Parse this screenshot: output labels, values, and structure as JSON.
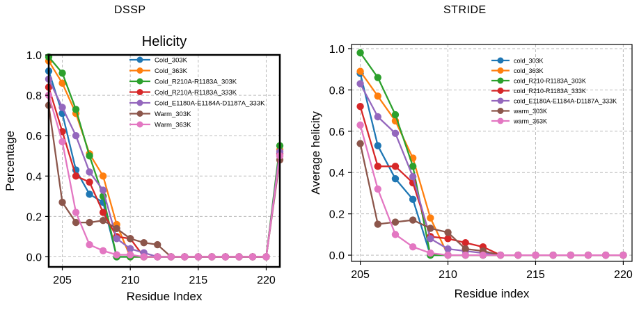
{
  "headings": {
    "left": "DSSP",
    "right": "STRIDE"
  },
  "chart_data": [
    {
      "type": "line",
      "title": "Helicity",
      "xlabel": "Residue Index",
      "ylabel": "Percentage",
      "xlim": [
        204,
        221
      ],
      "ylim": [
        -0.05,
        1.0
      ],
      "xticks": [
        205,
        210,
        215,
        220
      ],
      "yticks": [
        0.0,
        0.2,
        0.4,
        0.6,
        0.8,
        1.0
      ],
      "ytick_labels": [
        "0.0",
        "0.2",
        "0.4",
        "0.6",
        "0.8",
        "1.0"
      ],
      "grid": true,
      "legend_position": "upper-center",
      "x": [
        204,
        205,
        206,
        207,
        208,
        209,
        210,
        211,
        212,
        213,
        214,
        215,
        216,
        217,
        218,
        219,
        220,
        221
      ],
      "series": [
        {
          "name": "Cold_303K",
          "color": "#1f77b4",
          "values": [
            0.92,
            0.71,
            0.43,
            0.31,
            0.27,
            0.0,
            0.0,
            0.0,
            0.0,
            0.0,
            0.0,
            0.0,
            0.0,
            0.0,
            0.0,
            0.0,
            0.0,
            0.5
          ]
        },
        {
          "name": "Cold_363K",
          "color": "#ff7f0e",
          "values": [
            0.97,
            0.86,
            0.71,
            0.51,
            0.4,
            0.16,
            0.0,
            0.0,
            0.0,
            0.0,
            0.0,
            0.0,
            0.0,
            0.0,
            0.0,
            0.0,
            0.0,
            0.53
          ]
        },
        {
          "name": "Cold_R210A-R1183A_303K",
          "color": "#2ca02c",
          "values": [
            0.99,
            0.91,
            0.73,
            0.5,
            0.3,
            0.0,
            0.0,
            0.0,
            0.0,
            0.0,
            0.0,
            0.0,
            0.0,
            0.0,
            0.0,
            0.0,
            0.0,
            0.55
          ]
        },
        {
          "name": "Cold_R210A-R1183A_333K",
          "color": "#d62728",
          "values": [
            0.84,
            0.62,
            0.4,
            0.37,
            0.22,
            0.1,
            0.09,
            0.0,
            0.0,
            0.0,
            0.0,
            0.0,
            0.0,
            0.0,
            0.0,
            0.0,
            0.0,
            0.51
          ]
        },
        {
          "name": "Cold_E1180A-E1184A-D1187A_333K",
          "color": "#9467bd",
          "values": [
            0.88,
            0.74,
            0.6,
            0.42,
            0.33,
            0.09,
            0.04,
            0.02,
            0.0,
            0.0,
            0.0,
            0.0,
            0.0,
            0.0,
            0.0,
            0.0,
            0.0,
            0.52
          ]
        },
        {
          "name": "Warm_303K",
          "color": "#8c564b",
          "values": [
            0.75,
            0.27,
            0.17,
            0.17,
            0.18,
            0.14,
            0.09,
            0.07,
            0.06,
            0.0,
            0.0,
            0.0,
            0.0,
            0.0,
            0.0,
            0.0,
            0.0,
            0.48
          ]
        },
        {
          "name": "Warm_363K",
          "color": "#e377c2",
          "values": [
            0.8,
            0.57,
            0.22,
            0.06,
            0.03,
            0.01,
            0.01,
            0.0,
            0.0,
            0.0,
            0.0,
            0.0,
            0.0,
            0.0,
            0.0,
            0.0,
            0.0,
            0.5
          ]
        }
      ]
    },
    {
      "type": "line",
      "title": "",
      "xlabel": "Residue index",
      "ylabel": "Average helicity",
      "xlim": [
        204.5,
        220.5
      ],
      "ylim": [
        -0.03,
        1.02
      ],
      "xticks": [
        205,
        210,
        215,
        220
      ],
      "yticks": [
        0.0,
        0.2,
        0.4,
        0.6,
        0.8,
        1.0
      ],
      "ytick_labels": [
        "0.0",
        "0.2",
        "0.4",
        "0.6",
        "0.8",
        "1.0"
      ],
      "grid": true,
      "legend_position": "upper-right",
      "x": [
        205,
        206,
        207,
        208,
        209,
        210,
        211,
        212,
        213,
        214,
        215,
        216,
        217,
        218,
        219,
        220
      ],
      "series": [
        {
          "name": "cold_303K",
          "color": "#1f77b4",
          "values": [
            0.88,
            0.53,
            0.37,
            0.27,
            0.0,
            0.0,
            0.0,
            0.0,
            0.0,
            0.0,
            0.0,
            0.0,
            0.0,
            0.0,
            0.0,
            0.0
          ]
        },
        {
          "name": "cold_363K",
          "color": "#ff7f0e",
          "values": [
            0.89,
            0.77,
            0.65,
            0.47,
            0.18,
            0.0,
            0.0,
            0.0,
            0.0,
            0.0,
            0.0,
            0.0,
            0.0,
            0.0,
            0.0,
            0.0
          ]
        },
        {
          "name": "cold_R210-R1183A_303K",
          "color": "#2ca02c",
          "values": [
            0.98,
            0.86,
            0.68,
            0.43,
            0.0,
            0.0,
            0.0,
            0.0,
            0.0,
            0.0,
            0.0,
            0.0,
            0.0,
            0.0,
            0.0,
            0.0
          ]
        },
        {
          "name": "cold_R210-R1183A_333K",
          "color": "#d62728",
          "values": [
            0.72,
            0.43,
            0.43,
            0.35,
            0.09,
            0.08,
            0.06,
            0.04,
            0.0,
            0.0,
            0.0,
            0.0,
            0.0,
            0.0,
            0.0,
            0.0
          ]
        },
        {
          "name": "cold_E1180A-E1184A-D1187A_333K",
          "color": "#9467bd",
          "values": [
            0.83,
            0.67,
            0.59,
            0.38,
            0.08,
            0.03,
            0.02,
            0.01,
            0.0,
            0.0,
            0.0,
            0.0,
            0.0,
            0.0,
            0.0,
            0.0
          ]
        },
        {
          "name": "warm_303K",
          "color": "#8c564b",
          "values": [
            0.54,
            0.15,
            0.16,
            0.17,
            0.13,
            0.11,
            0.03,
            0.02,
            0.0,
            0.0,
            0.0,
            0.0,
            0.0,
            0.0,
            0.0,
            0.0
          ]
        },
        {
          "name": "warm_363K",
          "color": "#e377c2",
          "values": [
            0.63,
            0.32,
            0.1,
            0.04,
            0.01,
            0.0,
            0.0,
            0.0,
            0.0,
            0.0,
            0.0,
            0.0,
            0.0,
            0.0,
            0.0,
            0.0
          ]
        }
      ]
    }
  ]
}
